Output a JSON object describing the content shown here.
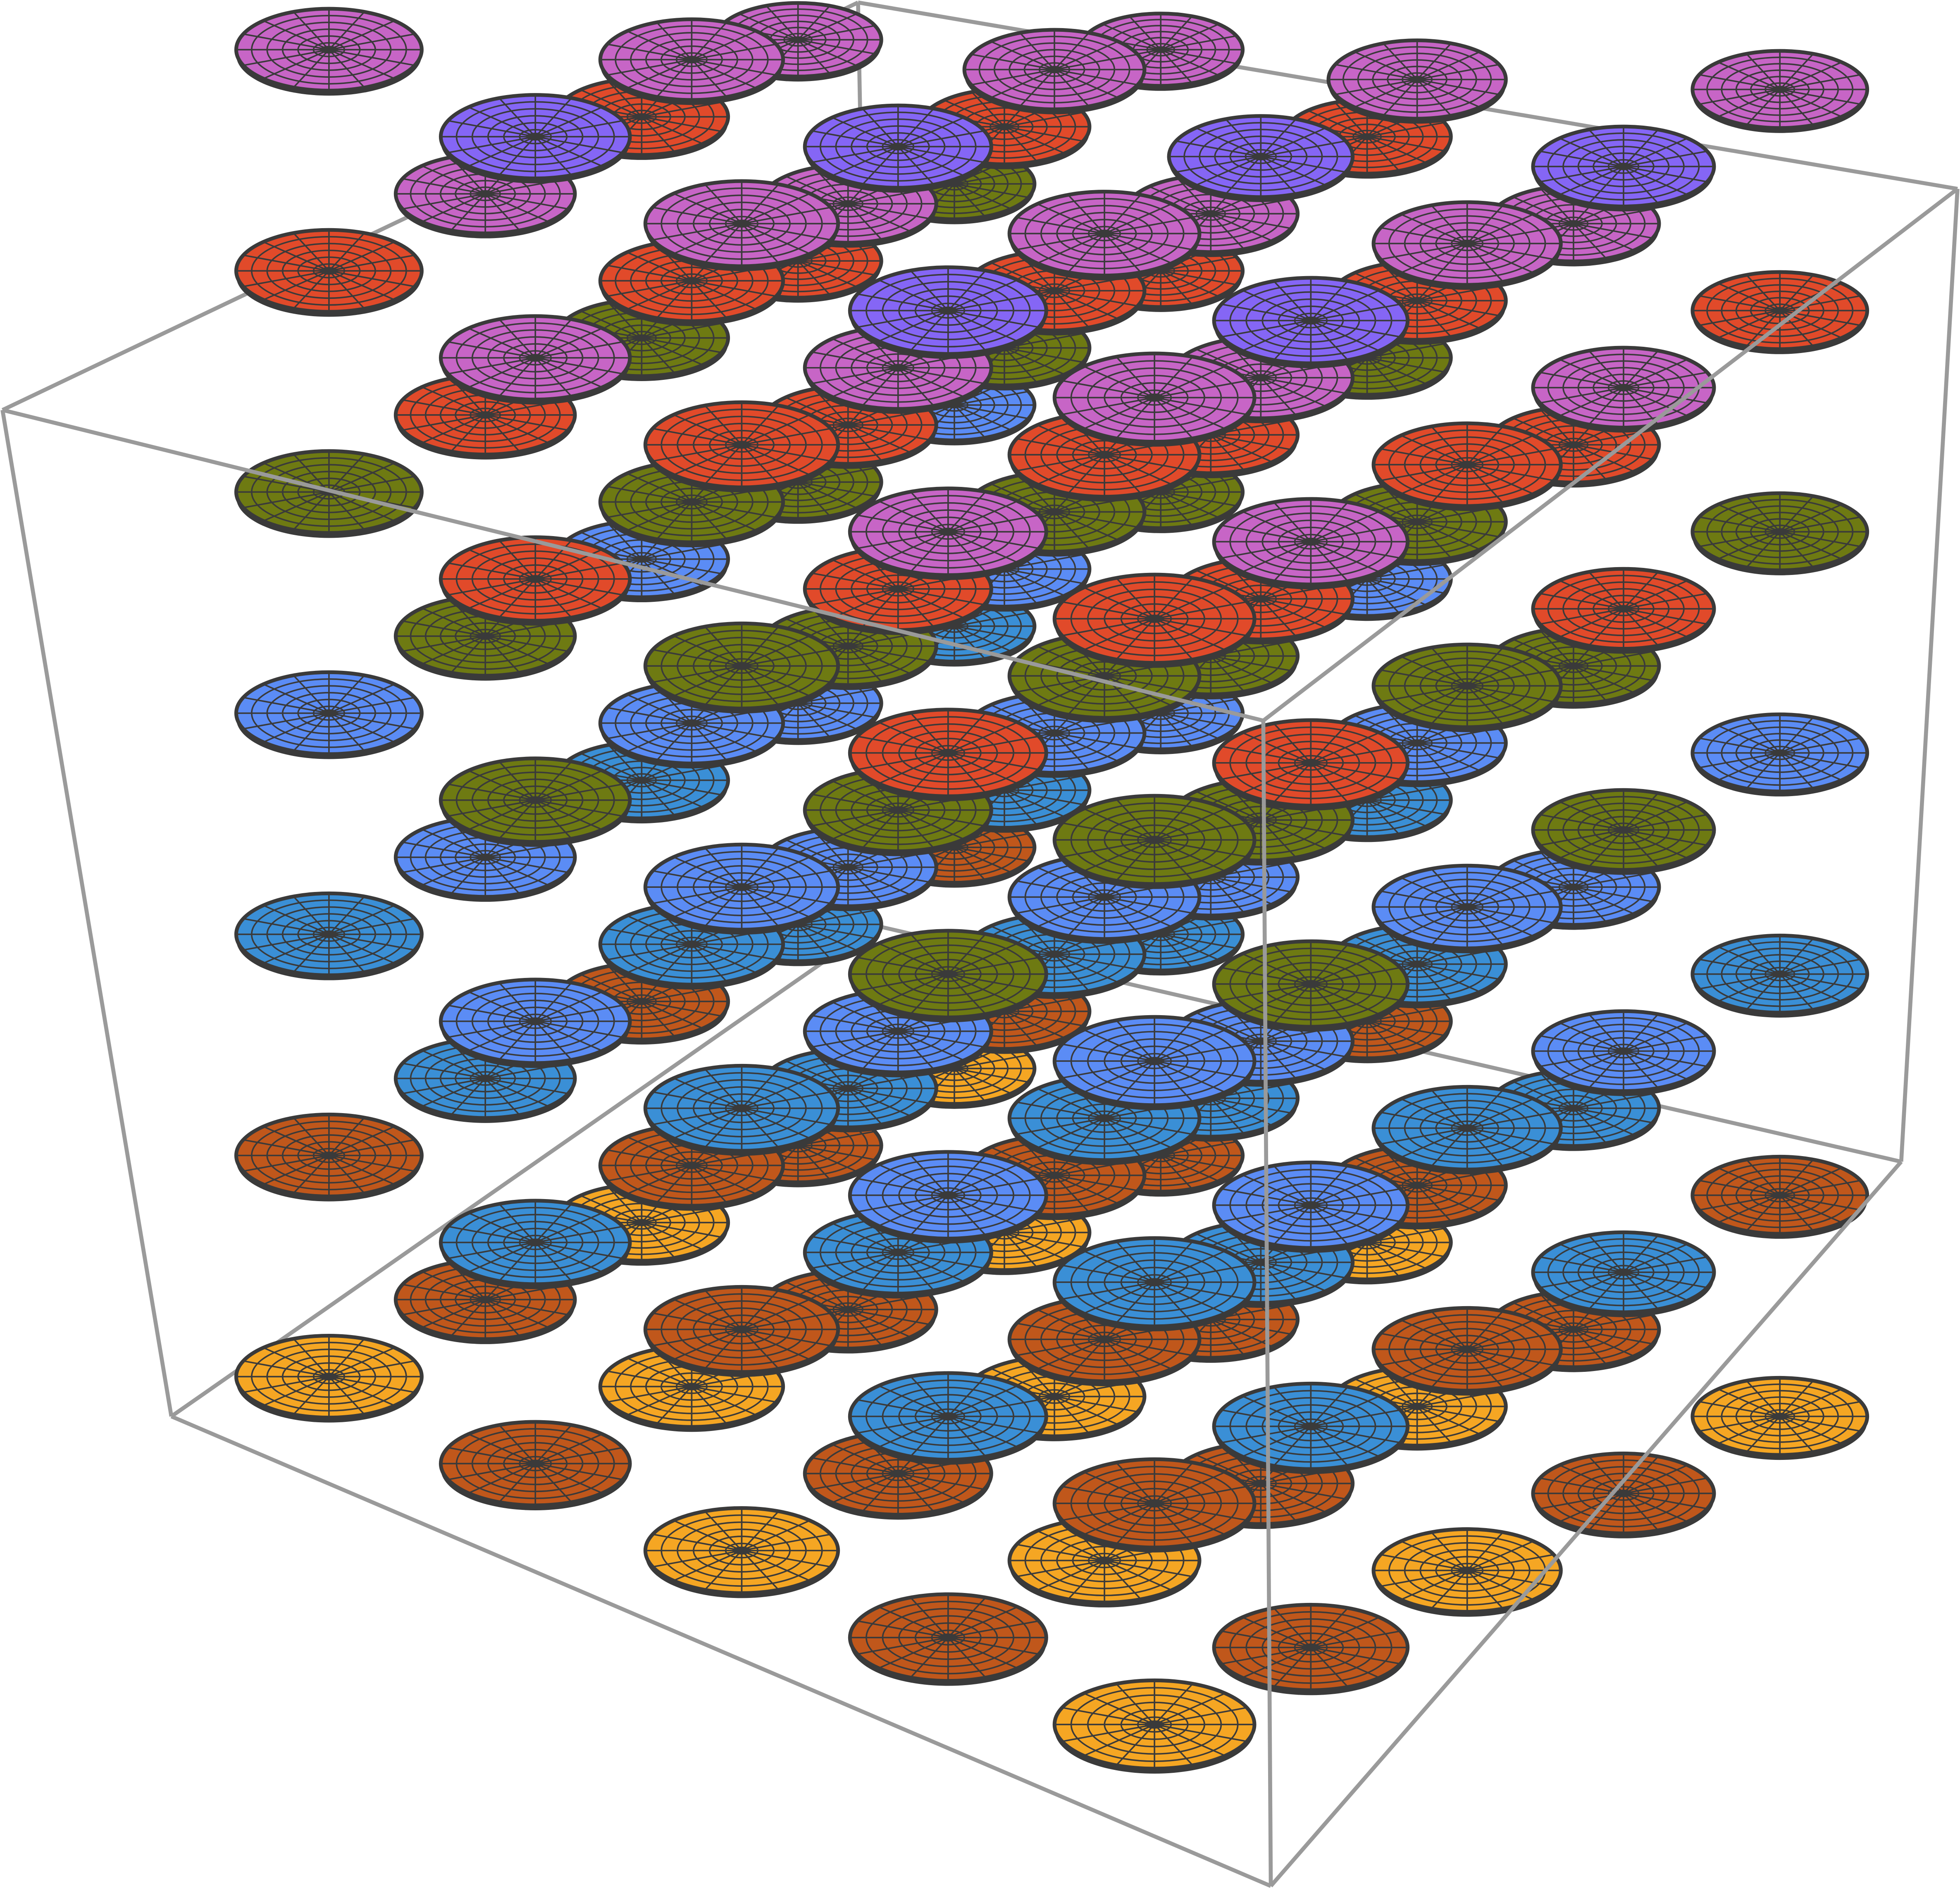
{
  "scene": {
    "type": "3d-disc-lattice",
    "grid": {
      "nx": 5,
      "ny": 5,
      "nz": 7
    },
    "layer_colors": [
      "#F5A623",
      "#C0571B",
      "#3A8FD6",
      "#5B8CF5",
      "#5E8C1E",
      "#6E7A12",
      "#E14A2A",
      "#C765C6",
      "#8566F5"
    ],
    "grid_lines": {
      "rings": 6,
      "spokes": 16
    }
  }
}
